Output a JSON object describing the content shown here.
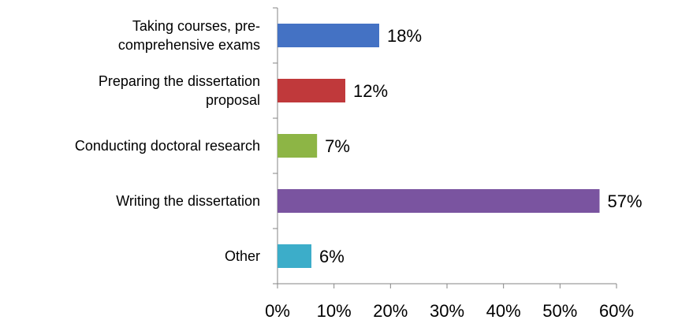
{
  "chart_data": {
    "type": "bar",
    "orientation": "horizontal",
    "categories": [
      "Taking courses, pre-comprehensive exams",
      "Preparing the dissertation proposal",
      "Conducting doctoral research",
      "Writing the dissertation",
      "Other"
    ],
    "values": [
      18,
      12,
      7,
      57,
      6
    ],
    "value_labels": [
      "18%",
      "12%",
      "7%",
      "57%",
      "6%"
    ],
    "colors": [
      "#4472c4",
      "#c0393b",
      "#8db545",
      "#7a54a0",
      "#3cadc9"
    ],
    "xlim": [
      0,
      60
    ],
    "xticks": [
      {
        "value": 0,
        "label": "0%"
      },
      {
        "value": 10,
        "label": "10%"
      },
      {
        "value": 20,
        "label": "20%"
      },
      {
        "value": 30,
        "label": "30%"
      },
      {
        "value": 40,
        "label": "40%"
      },
      {
        "value": 50,
        "label": "50%"
      },
      {
        "value": 60,
        "label": "60%"
      }
    ],
    "grid": false
  }
}
